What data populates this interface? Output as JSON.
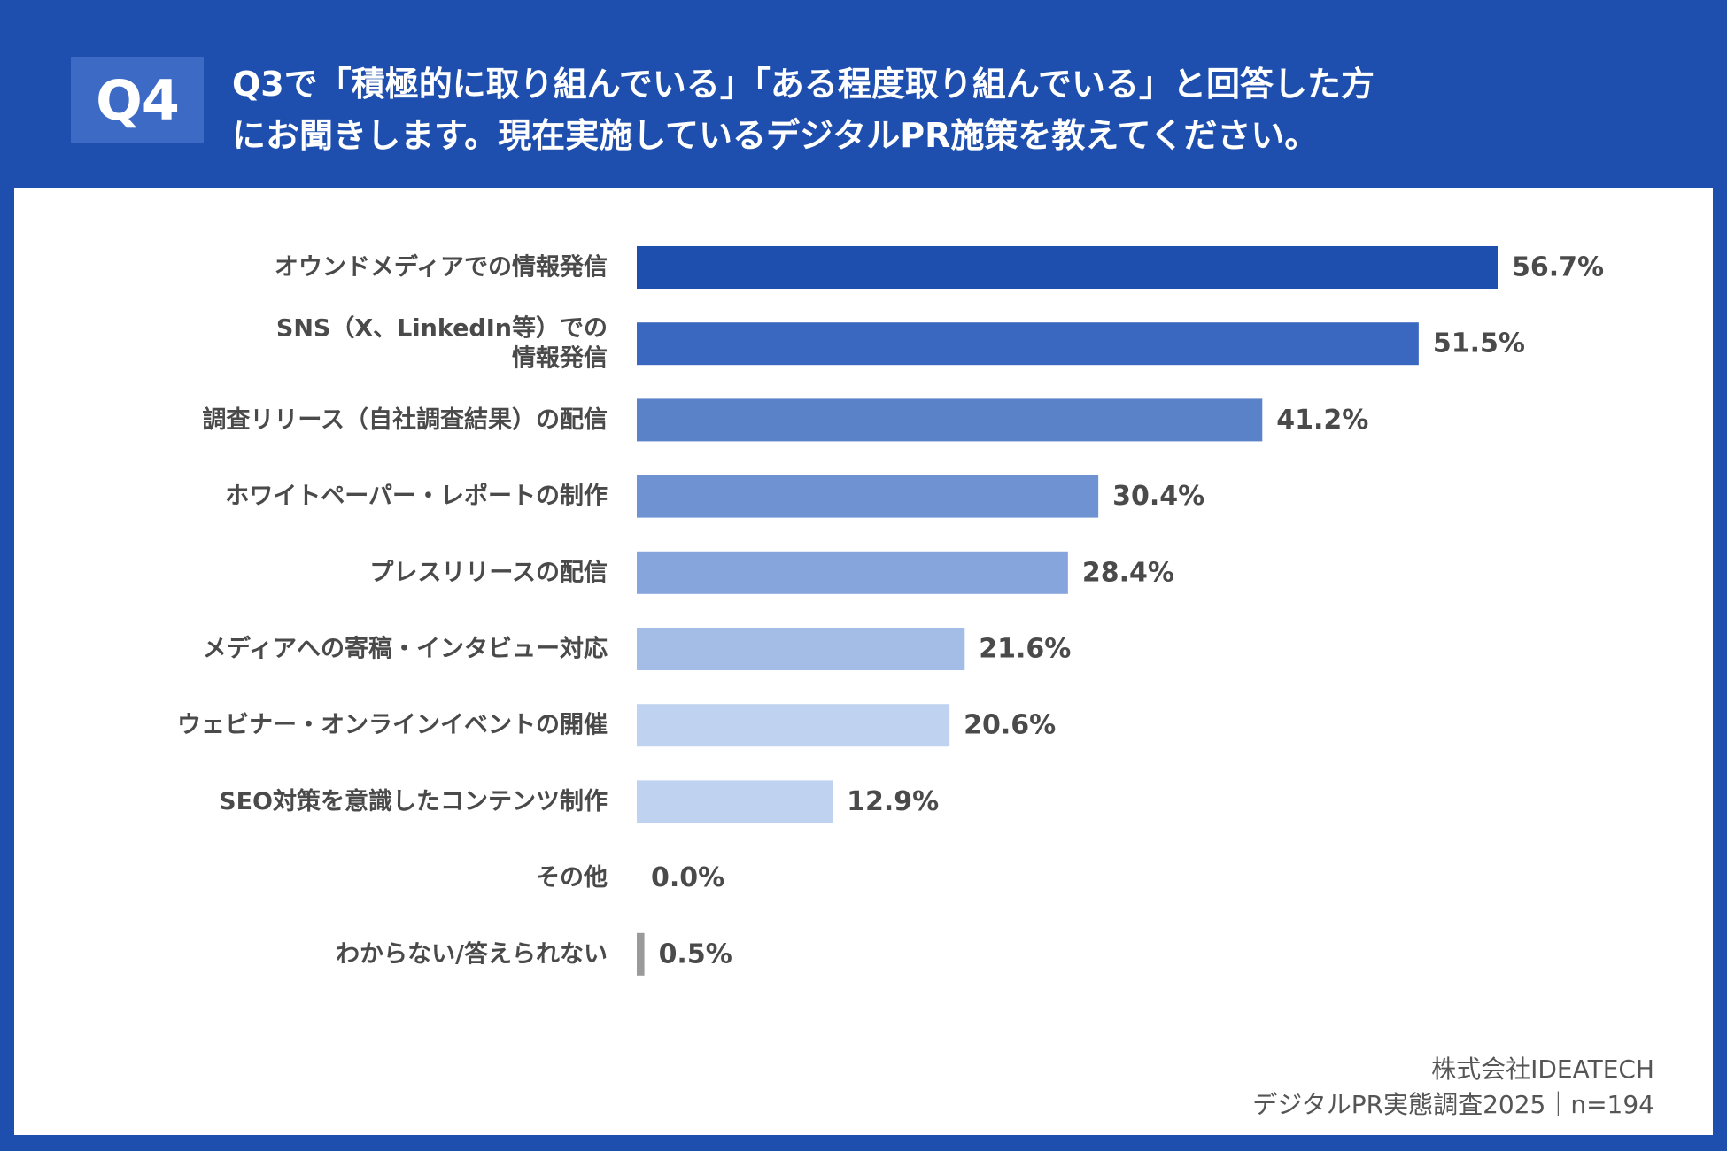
{
  "header": {
    "badge": "Q4",
    "question_line1": "Q3で「積極的に取り組んでいる」「ある程度取り組んでいる」と回答した方",
    "question_line2": "にお聞きします。現在実施しているデジタルPR施策を教えてください。"
  },
  "footer": {
    "company": "株式会社IDEATECH",
    "survey": "デジタルPR実態調査2025｜n=194"
  },
  "colors": {
    "background": "#1f4fae",
    "badge": "#3d6ac5",
    "panel": "#ffffff",
    "text": "#4a4a4a",
    "zero_bar": "#9a9a9a"
  },
  "chart_data": {
    "type": "bar",
    "orientation": "horizontal",
    "title": "",
    "xlabel": "",
    "ylabel": "",
    "xlim": [
      0,
      56.7
    ],
    "grid": false,
    "unit": "%",
    "categories": [
      [
        "オウンドメディアでの情報発信"
      ],
      [
        "SNS（X、LinkedIn等）での",
        "情報発信"
      ],
      [
        "調査リリース（自社調査結果）の配信"
      ],
      [
        "ホワイトペーパー・レポートの制作"
      ],
      [
        "プレスリリースの配信"
      ],
      [
        "メディアへの寄稿・インタビュー対応"
      ],
      [
        "ウェビナー・オンラインイベントの開催"
      ],
      [
        "SEO対策を意識したコンテンツ制作"
      ],
      [
        "その他"
      ],
      [
        "わからない/答えられない"
      ]
    ],
    "values": [
      56.7,
      51.5,
      41.2,
      30.4,
      28.4,
      21.6,
      20.6,
      12.9,
      0.0,
      0.5
    ],
    "value_labels": [
      "56.7%",
      "51.5%",
      "41.2%",
      "30.4%",
      "28.4%",
      "21.6%",
      "20.6%",
      "12.9%",
      "0.0%",
      "0.5%"
    ],
    "bar_colors": [
      "#1f4fae",
      "#3a68c0",
      "#5a82c9",
      "#6e92d2",
      "#86a5dc",
      "#a3bde6",
      "#bfd2ef",
      "#bfd2ef",
      "#bfd2ef",
      "#9a9a9a"
    ]
  }
}
